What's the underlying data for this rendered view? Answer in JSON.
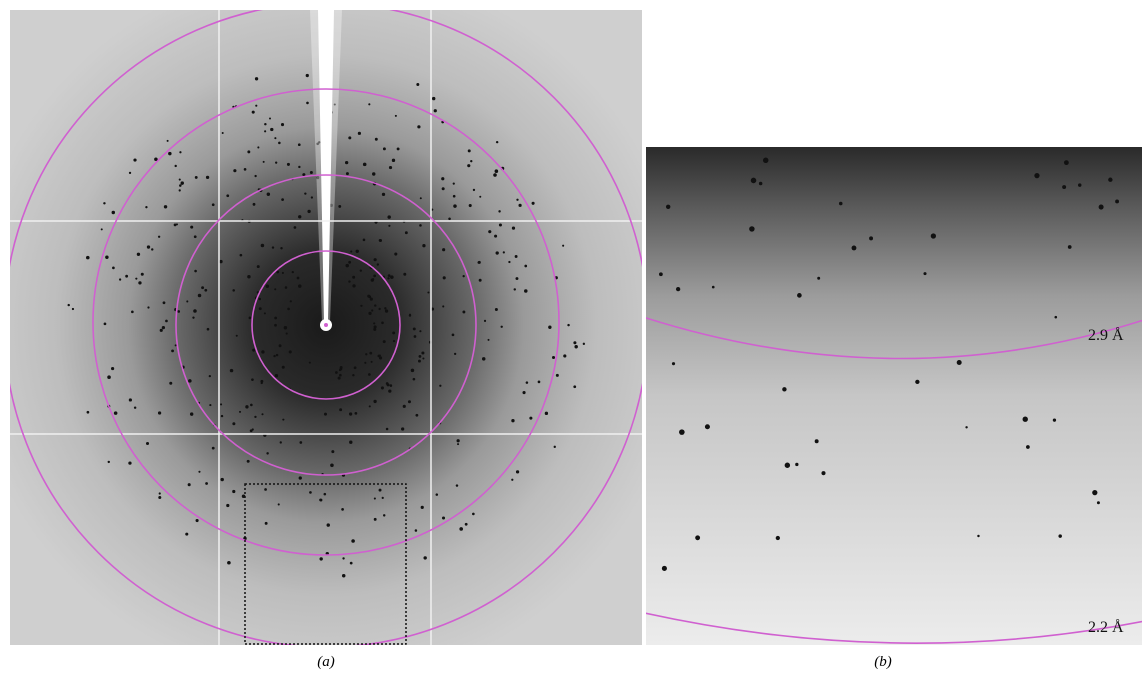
{
  "panels": [
    {
      "label": "(a)"
    },
    {
      "label": "(b)",
      "annotations": [
        "2.9 Å",
        "2.2 Å"
      ]
    }
  ]
}
